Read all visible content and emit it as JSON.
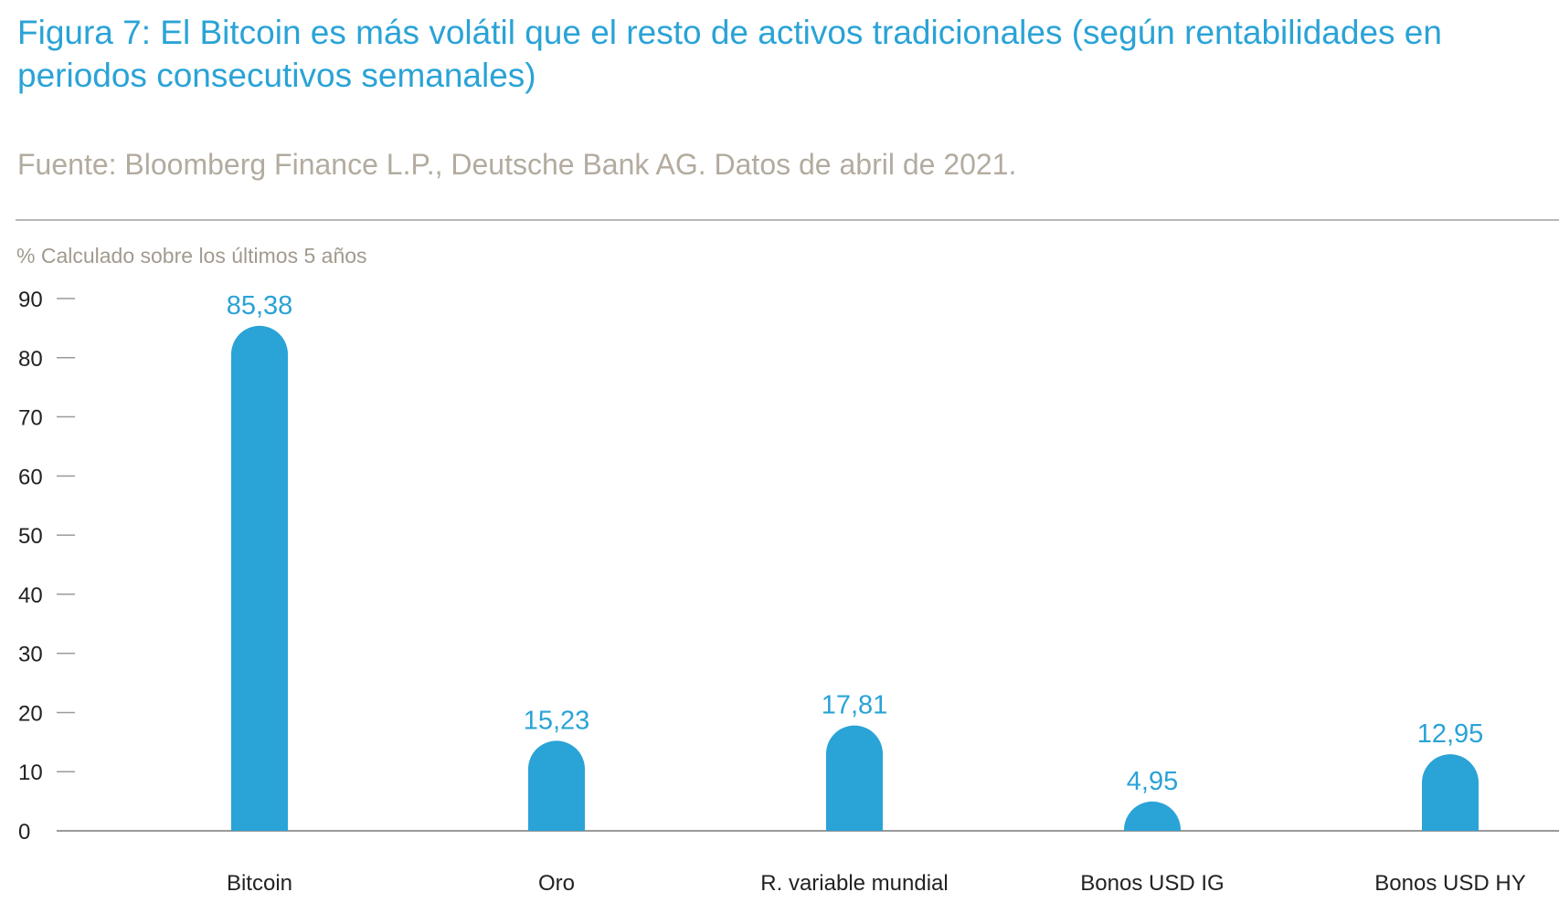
{
  "chart_data": {
    "type": "bar",
    "title": "Figura 7: El Bitcoin es más volátil que el resto de activos tradicionales (según rentabilidades en periodos consecutivos semanales)",
    "source": "Fuente: Bloomberg Finance L.P., Deutsche Bank AG. Datos de abril de 2021.",
    "ylabel": "% Calculado sobre los últimos 5 años",
    "categories": [
      "Bitcoin",
      "Oro",
      "R. variable mundial",
      "Bonos USD IG",
      "Bonos USD HY"
    ],
    "values": [
      85.38,
      15.23,
      17.81,
      4.95,
      12.95
    ],
    "value_labels": [
      "85,38",
      "15,23",
      "17,81",
      "4,95",
      "12,95"
    ],
    "yticks": [
      0,
      10,
      20,
      30,
      40,
      50,
      60,
      70,
      80,
      90
    ],
    "ylim": [
      0,
      90
    ],
    "grid": false,
    "bar_color": "#2aa3d6"
  }
}
